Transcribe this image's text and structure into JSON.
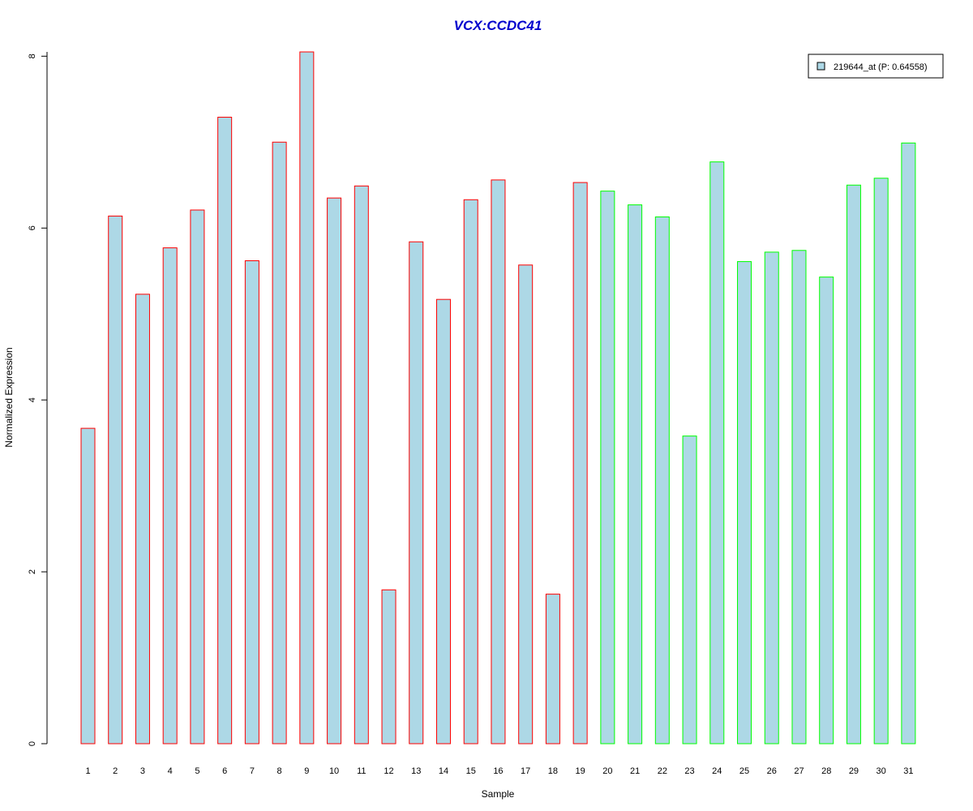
{
  "chart_data": {
    "type": "bar",
    "title": "VCX:CCDC41",
    "xlabel": "Sample",
    "ylabel": "Normalized Expression",
    "categories": [
      "1",
      "2",
      "3",
      "4",
      "5",
      "6",
      "7",
      "8",
      "9",
      "10",
      "11",
      "12",
      "13",
      "14",
      "15",
      "16",
      "17",
      "18",
      "19",
      "20",
      "21",
      "22",
      "23",
      "24",
      "25",
      "26",
      "27",
      "28",
      "29",
      "30",
      "31"
    ],
    "series": [
      {
        "name": "219644_at (P: 0.64558)",
        "values": [
          3.67,
          6.14,
          5.23,
          5.77,
          6.21,
          7.29,
          5.62,
          7.0,
          8.05,
          6.35,
          6.49,
          1.79,
          5.84,
          5.17,
          6.33,
          6.56,
          5.57,
          1.74,
          6.53,
          6.43,
          6.27,
          6.13,
          3.58,
          6.77,
          5.61,
          5.72,
          5.74,
          5.43,
          6.5,
          6.58,
          6.99
        ]
      }
    ],
    "groups": [
      {
        "range": [
          1,
          19
        ],
        "border_color": "#ff0000"
      },
      {
        "range": [
          20,
          31
        ],
        "border_color": "#00ff00"
      }
    ],
    "yticks": [
      0,
      2,
      4,
      6,
      8
    ],
    "ylim": [
      0,
      8.05
    ],
    "grid": false,
    "legend_position": "top-right",
    "colors": {
      "bar_fill": "#add8e6",
      "title": "#0000cd",
      "group1_border": "#ff0000",
      "group2_border": "#00ff00"
    }
  }
}
